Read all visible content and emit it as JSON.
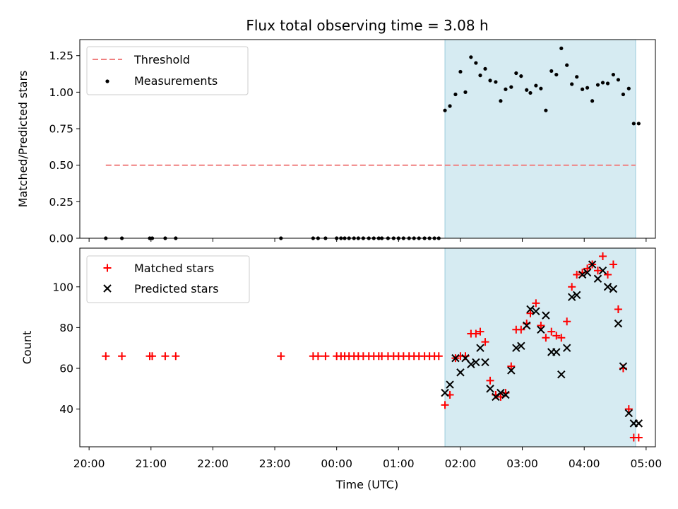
{
  "chart_data": {
    "type": "scatter",
    "title": "Flux total observing time = 3.08 h",
    "xlabel": "Time (UTC)",
    "x_ticks": [
      "20:00",
      "21:00",
      "22:00",
      "23:00",
      "00:00",
      "01:00",
      "02:00",
      "03:00",
      "04:00",
      "05:00"
    ],
    "x_tick_hours": [
      0,
      1,
      2,
      3,
      4,
      5,
      6,
      7,
      8,
      9
    ],
    "xlim_hours": [
      -0.15,
      9.15
    ],
    "shaded_region_hours": [
      5.75,
      8.83
    ],
    "colors": {
      "shade": "#add8e6",
      "threshold": "#f08080",
      "measurements": "#000000",
      "matched": "#ff0000",
      "predicted": "#000000"
    },
    "top_panel": {
      "ylabel": "Matched/Predicted stars",
      "ylim": [
        0,
        1.36
      ],
      "yticks": [
        "0.00",
        "0.25",
        "0.50",
        "0.75",
        "1.00",
        "1.25"
      ],
      "ytick_values": [
        0,
        0.25,
        0.5,
        0.75,
        1.0,
        1.25
      ],
      "threshold": {
        "name": "Threshold",
        "value": 0.5,
        "x_start_hours": 0.27,
        "x_end_hours": 8.83
      },
      "legend": [
        "Threshold",
        "Measurements"
      ],
      "measurements": {
        "name": "Measurements",
        "x_hours": [
          0.27,
          0.53,
          0.98,
          1.02,
          1.23,
          1.4,
          3.1,
          3.62,
          3.7,
          3.82,
          4.0,
          4.07,
          4.13,
          4.2,
          4.28,
          4.35,
          4.43,
          4.52,
          4.6,
          4.68,
          4.73,
          4.83,
          4.92,
          5.0,
          5.08,
          5.17,
          5.25,
          5.33,
          5.42,
          5.5,
          5.58,
          5.65,
          5.75,
          5.83,
          5.92,
          6.0,
          6.08,
          6.17,
          6.25,
          6.32,
          6.4,
          6.48,
          6.57,
          6.65,
          6.73,
          6.82,
          6.9,
          6.98,
          7.07,
          7.13,
          7.22,
          7.3,
          7.38,
          7.47,
          7.55,
          7.63,
          7.72,
          7.8,
          7.88,
          7.97,
          8.05,
          8.13,
          8.22,
          8.3,
          8.38,
          8.47,
          8.55,
          8.63,
          8.72,
          8.8,
          8.88
        ],
        "y": [
          0,
          0,
          0,
          0,
          0,
          0,
          0,
          0,
          0,
          0,
          0,
          0,
          0,
          0,
          0,
          0,
          0,
          0,
          0,
          0,
          0,
          0,
          0,
          0,
          0,
          0,
          0,
          0,
          0,
          0,
          0,
          0,
          0.875,
          0.905,
          0.985,
          1.14,
          1.0,
          1.24,
          1.2,
          1.115,
          1.16,
          1.08,
          1.07,
          0.94,
          1.02,
          1.035,
          1.13,
          1.11,
          1.015,
          0.995,
          1.045,
          1.025,
          0.875,
          1.145,
          1.12,
          1.3,
          1.185,
          1.055,
          1.105,
          1.02,
          1.03,
          0.94,
          1.05,
          1.065,
          1.06,
          1.12,
          1.085,
          0.985,
          1.025,
          0.785,
          0.785
        ]
      }
    },
    "bottom_panel": {
      "ylabel": "Count",
      "ylim": [
        21.5,
        119
      ],
      "yticks": [
        "40",
        "60",
        "80",
        "100"
      ],
      "ytick_values": [
        40,
        60,
        80,
        100
      ],
      "legend": [
        "Matched stars",
        "Predicted stars"
      ],
      "matched": {
        "name": "Matched stars",
        "x_hours": [
          0.27,
          0.53,
          0.98,
          1.02,
          1.23,
          1.4,
          3.1,
          3.62,
          3.7,
          3.82,
          4.0,
          4.07,
          4.13,
          4.2,
          4.28,
          4.35,
          4.43,
          4.52,
          4.6,
          4.68,
          4.73,
          4.83,
          4.92,
          5.0,
          5.08,
          5.17,
          5.25,
          5.33,
          5.42,
          5.5,
          5.58,
          5.65,
          5.75,
          5.83,
          5.92,
          6.0,
          6.08,
          6.17,
          6.25,
          6.32,
          6.4,
          6.48,
          6.57,
          6.65,
          6.73,
          6.82,
          6.9,
          6.98,
          7.07,
          7.13,
          7.22,
          7.3,
          7.38,
          7.47,
          7.55,
          7.63,
          7.72,
          7.8,
          7.88,
          7.97,
          8.05,
          8.13,
          8.22,
          8.3,
          8.38,
          8.47,
          8.55,
          8.63,
          8.72,
          8.8,
          8.88
        ],
        "y": [
          66,
          66,
          66,
          66,
          66,
          66,
          66,
          66,
          66,
          66,
          66,
          66,
          66,
          66,
          66,
          66,
          66,
          66,
          66,
          66,
          66,
          66,
          66,
          66,
          66,
          66,
          66,
          66,
          66,
          66,
          66,
          66,
          42,
          47,
          65,
          66,
          66,
          77,
          77,
          78,
          73,
          54,
          47,
          46,
          48,
          61,
          79,
          79,
          82,
          87,
          92,
          81,
          75,
          78,
          76,
          75,
          83,
          100,
          106,
          107,
          109,
          111,
          108,
          115,
          106,
          111,
          89,
          60,
          40,
          26,
          26
        ]
      },
      "predicted": {
        "name": "Predicted stars",
        "x_hours": [
          5.75,
          5.83,
          5.92,
          6.0,
          6.08,
          6.17,
          6.25,
          6.32,
          6.4,
          6.48,
          6.57,
          6.65,
          6.73,
          6.82,
          6.9,
          6.98,
          7.07,
          7.13,
          7.22,
          7.3,
          7.38,
          7.47,
          7.55,
          7.63,
          7.72,
          7.8,
          7.88,
          7.97,
          8.05,
          8.13,
          8.22,
          8.3,
          8.38,
          8.47,
          8.55,
          8.63,
          8.72,
          8.8,
          8.88
        ],
        "y": [
          48,
          52,
          65,
          58,
          65,
          62,
          63,
          70,
          63,
          50,
          46,
          48,
          47,
          59,
          70,
          71,
          81,
          89,
          88,
          79,
          86,
          68,
          68,
          57,
          70,
          95,
          96,
          106,
          107,
          111,
          104,
          108,
          100,
          99,
          82,
          61,
          38,
          33,
          33
        ]
      }
    }
  }
}
